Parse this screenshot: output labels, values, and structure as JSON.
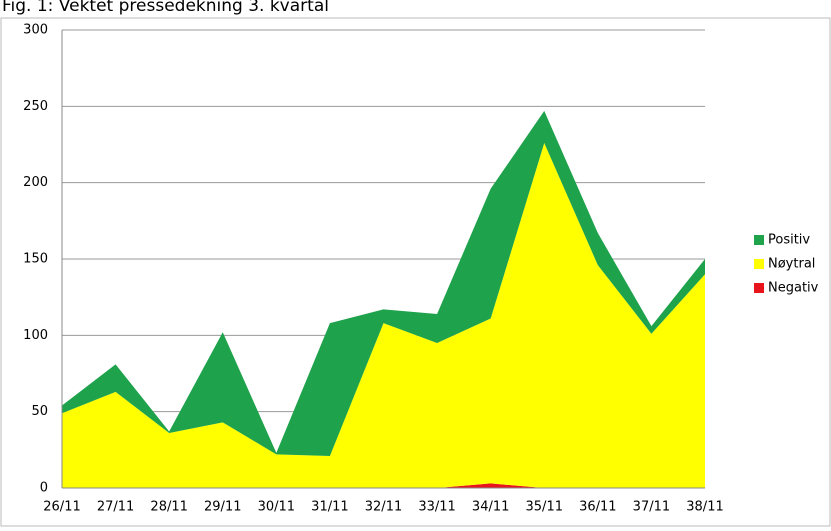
{
  "chart_data": {
    "type": "stacked_area",
    "title": "Fig. 1: Vektet pressedekning 3. kvartal",
    "categories": [
      "26/11",
      "27/11",
      "28/11",
      "29/11",
      "30/11",
      "31/11",
      "32/11",
      "33/11",
      "34/11",
      "35/11",
      "36/11",
      "37/11",
      "38/11"
    ],
    "series": [
      {
        "name": "Negativ",
        "color": "#e8141c",
        "values": [
          0,
          0,
          0,
          0,
          0,
          0,
          0,
          0,
          3,
          0,
          0,
          0,
          0
        ]
      },
      {
        "name": "Nøytral",
        "color": "#ffff00",
        "values": [
          49,
          63,
          36,
          43,
          22,
          21,
          108,
          95,
          108,
          226,
          146,
          101,
          140
        ]
      },
      {
        "name": "Positiv",
        "color": "#1ea24b",
        "values": [
          5,
          18,
          1,
          59,
          1,
          87,
          9,
          19,
          85,
          21,
          21,
          5,
          10
        ]
      }
    ],
    "ylim": [
      0,
      300
    ],
    "yticks": [
      0,
      50,
      100,
      150,
      200,
      250,
      300
    ],
    "grid": true,
    "legend": "right"
  }
}
